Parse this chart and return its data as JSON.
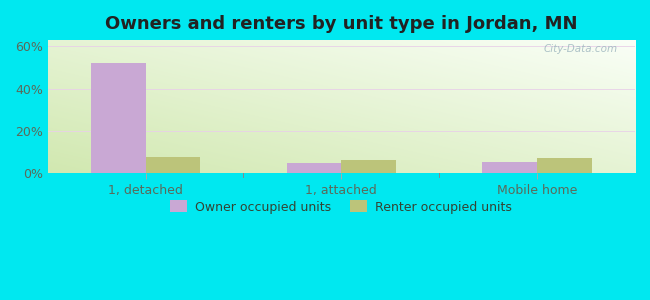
{
  "title": "Owners and renters by unit type in Jordan, MN",
  "categories": [
    "1, detached",
    "1, attached",
    "Mobile home"
  ],
  "owner_values": [
    52,
    5,
    5.5
  ],
  "renter_values": [
    8,
    6.5,
    7.5
  ],
  "owner_color": "#c9a8d4",
  "renter_color": "#bcc47a",
  "bar_width": 0.28,
  "ylim": [
    0,
    63
  ],
  "yticks": [
    0,
    20,
    40,
    60
  ],
  "ytick_labels": [
    "0%",
    "20%",
    "40%",
    "60%"
  ],
  "background_outer": "#00e8f0",
  "title_fontsize": 13,
  "tick_fontsize": 9,
  "legend_fontsize": 9,
  "watermark": "City-Data.com"
}
